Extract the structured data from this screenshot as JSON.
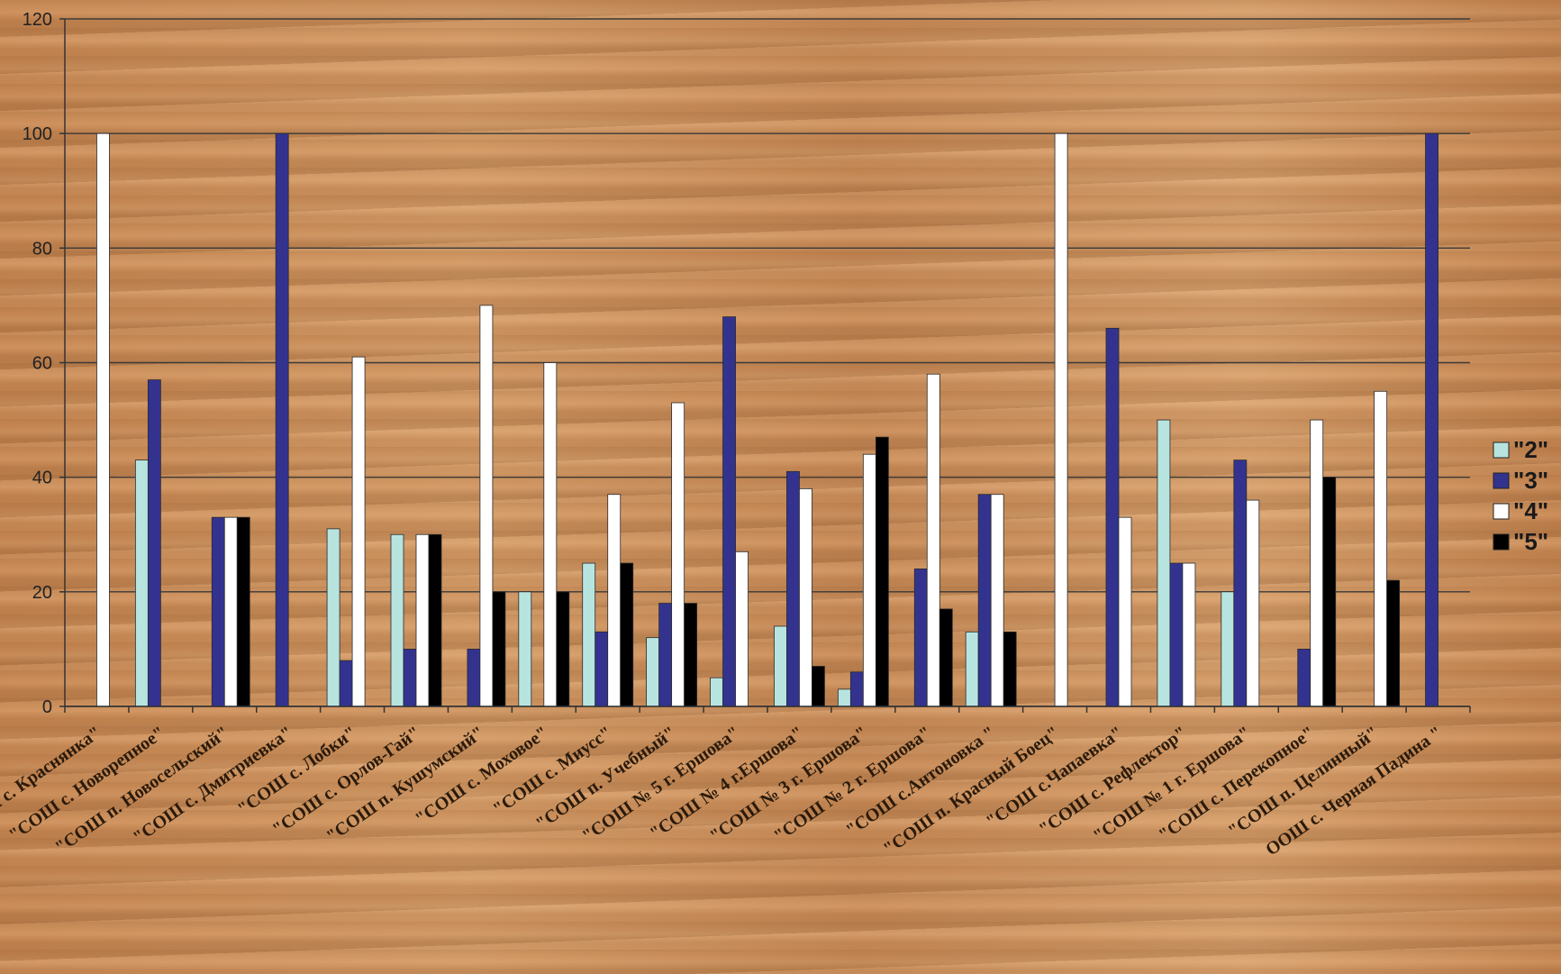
{
  "chart_data": {
    "type": "bar",
    "ylim": [
      0,
      120
    ],
    "yticks": [
      0,
      20,
      40,
      60,
      80,
      100,
      120
    ],
    "grid": true,
    "legend_position": "right",
    "categories": [
      "\"СОШ с. Краснянка\"",
      "\"СОШ с. Новорепное\"",
      "\"СОШ п. Новосельский\"",
      "\"СОШ с. Дмитриевка\"",
      "\"СОШ с. Лобки\"",
      "\"СОШ с. Орлов-Гай\"",
      "\"СОШ п. Кушумский\"",
      "\"СОШ с. Моховое\"",
      "\"СОШ с. Миусс\"",
      "\"СОШ п. Учебный\"",
      "\"СОШ № 5 г. Ершова\"",
      "\"СОШ № 4 г.Ершова\"",
      "\"СОШ № 3 г. Ершова\"",
      "\"СОШ № 2 г. Ершова\"",
      "\"СОШ с.Антоновка \"",
      "\"СОШ п. Красный Боец\"",
      "\"СОШ с.Чапаевка\"",
      "\"СОШ с. Рефлектор\"",
      "\"СОШ № 1 г. Ершова\"",
      "\"СОШ с. Перекопное\"",
      "\"СОШ п. Целинный\"",
      "ООШ с. Черная Падина \""
    ],
    "series": [
      {
        "name": "\"2\"",
        "color": "#b8e4e0",
        "values": [
          0,
          43,
          0,
          0,
          31,
          30,
          0,
          20,
          25,
          12,
          5,
          14,
          3,
          0,
          13,
          0,
          0,
          50,
          20,
          0,
          0,
          0
        ]
      },
      {
        "name": "\"3\"",
        "color": "#33338f",
        "values": [
          0,
          57,
          33,
          100,
          8,
          10,
          10,
          0,
          13,
          18,
          68,
          41,
          6,
          24,
          37,
          0,
          66,
          25,
          43,
          10,
          0,
          100
        ]
      },
      {
        "name": "\"4\"",
        "color": "#ffffff",
        "values": [
          100,
          0,
          33,
          0,
          61,
          30,
          70,
          60,
          37,
          53,
          27,
          38,
          44,
          58,
          37,
          100,
          33,
          25,
          36,
          50,
          55,
          0
        ]
      },
      {
        "name": "\"5\"",
        "color": "#000000",
        "values": [
          0,
          0,
          33,
          0,
          0,
          30,
          20,
          20,
          25,
          18,
          0,
          7,
          47,
          17,
          13,
          0,
          0,
          0,
          0,
          40,
          22,
          0
        ]
      }
    ]
  }
}
